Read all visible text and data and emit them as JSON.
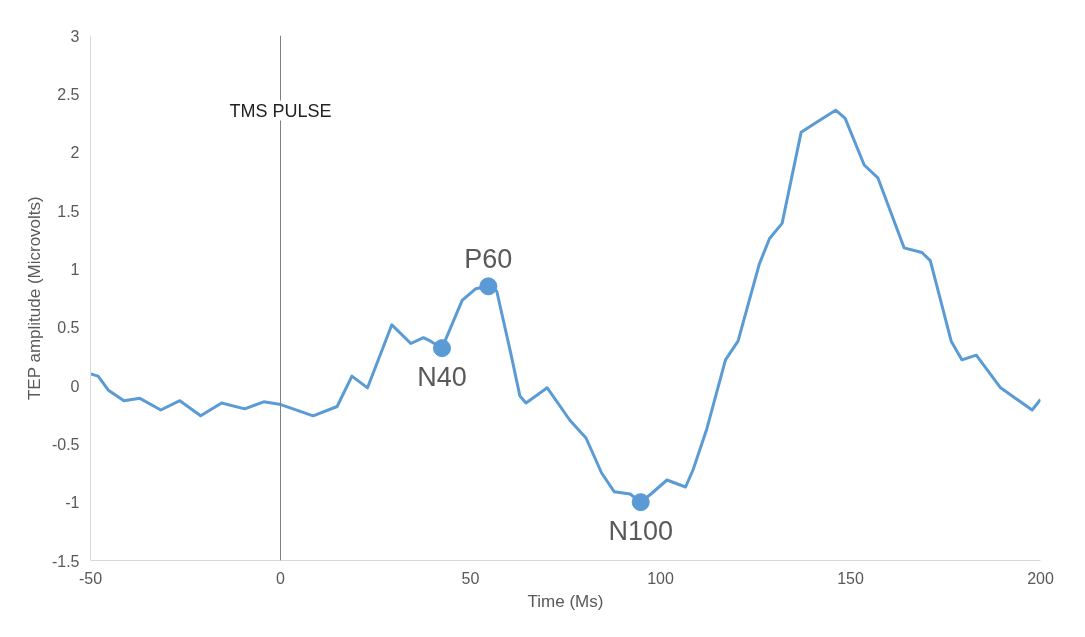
{
  "chart_data": {
    "type": "line",
    "xlabel": "Time (Ms)",
    "ylabel": "TEP amplitude (Microvolts)",
    "xlim": [
      -50,
      200
    ],
    "xticks": [
      -50,
      0,
      50,
      100,
      150,
      200
    ],
    "ylim": [
      -1.5,
      3
    ],
    "yticks": [
      -1.5,
      -1,
      -0.5,
      0,
      0.5,
      1,
      1.5,
      2,
      2.5,
      3
    ],
    "grid": false,
    "x": [
      -50,
      -48,
      -45.3,
      -41.2,
      -37,
      -31.5,
      -26.5,
      -21,
      -15.5,
      -9.4,
      -4.4,
      -0.3,
      8.6,
      14.9,
      18.8,
      22.9,
      29.3,
      34.3,
      37.6,
      39.5,
      42.5,
      47.8,
      51.4,
      54.7,
      56.9,
      60.5,
      63,
      64.6,
      70.2,
      76.2,
      80.4,
      84.5,
      87.8,
      92,
      94.8,
      97.5,
      101.7,
      106.6,
      108.6,
      112.2,
      117.1,
      120.4,
      126,
      128.7,
      132,
      137,
      141.7,
      146.1,
      148.6,
      153.6,
      157.2,
      164.1,
      168.8,
      171,
      176.5,
      179.3,
      183.1,
      189.5,
      197.8,
      200
    ],
    "series": [
      {
        "color": "#5b9bd5",
        "values": [
          0.1,
          0.08,
          -0.04,
          -0.13,
          -0.11,
          -0.21,
          -0.13,
          -0.26,
          -0.15,
          -0.2,
          -0.14,
          -0.16,
          -0.26,
          -0.18,
          0.08,
          -0.02,
          0.52,
          0.36,
          0.41,
          0.38,
          0.32,
          0.73,
          0.83,
          0.85,
          0.81,
          0.29,
          -0.09,
          -0.15,
          -0.02,
          -0.3,
          -0.45,
          -0.75,
          -0.91,
          -0.93,
          -1.0,
          -0.93,
          -0.81,
          -0.87,
          -0.72,
          -0.37,
          0.22,
          0.38,
          1.04,
          1.26,
          1.39,
          2.17,
          2.27,
          2.36,
          2.29,
          1.89,
          1.78,
          1.18,
          1.14,
          1.07,
          0.38,
          0.22,
          0.26,
          -0.02,
          -0.21,
          -0.12
        ]
      }
    ],
    "annotations": [
      {
        "text": "N40",
        "x": 42.5,
        "y": 0.32
      },
      {
        "text": "P60",
        "x": 54.7,
        "y": 0.85
      },
      {
        "text": "N100",
        "x": 94.8,
        "y": -1.0
      }
    ],
    "ref_lines": [
      {
        "axis": "x",
        "value": 0,
        "label": "TMS PULSE",
        "color": "#808080"
      }
    ]
  }
}
